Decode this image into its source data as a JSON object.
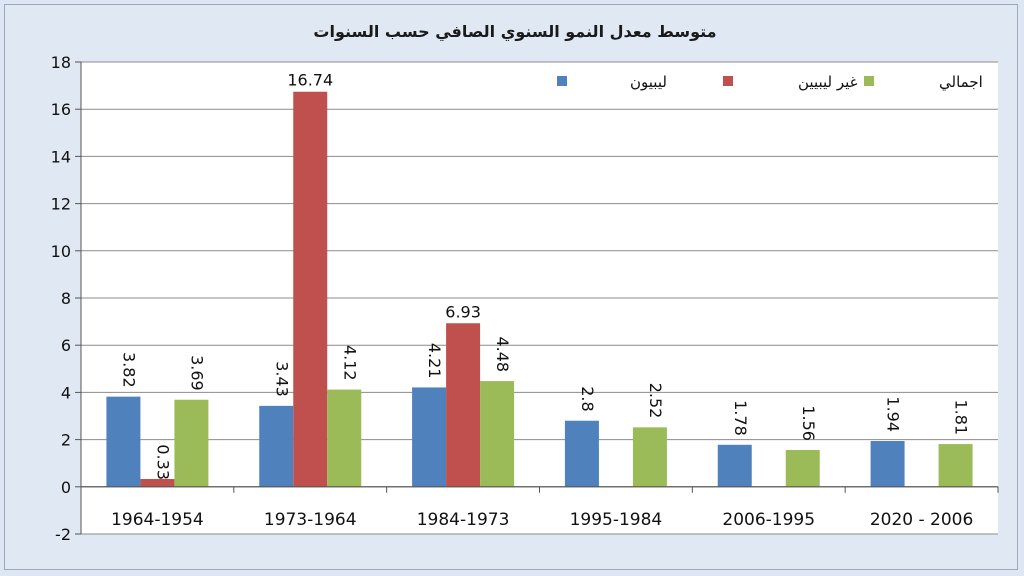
{
  "chart_data": {
    "type": "bar",
    "title": "متوسط معدل النمو السنوي الصافي حسب السنوات",
    "categories": [
      "1964-1954",
      "1973-1964",
      "1984-1973",
      "1995-1984",
      "2006-1995",
      "2020 - 2006"
    ],
    "series": [
      {
        "name": "ليبيون",
        "color": "#4f81bd",
        "values": [
          3.82,
          3.43,
          4.21,
          2.8,
          1.78,
          1.94
        ],
        "labels": [
          "3.82",
          "3.43",
          "4.21",
          "2.8",
          "1.78",
          "1.94"
        ]
      },
      {
        "name": "غير ليبيين",
        "color": "#c0504d",
        "values": [
          0.33,
          16.74,
          6.93,
          null,
          null,
          null
        ],
        "labels": [
          "0.33",
          "16.74",
          "6.93",
          null,
          null,
          null
        ]
      },
      {
        "name": "اجمالي",
        "color": "#9bbb59",
        "values": [
          3.69,
          4.12,
          4.48,
          2.52,
          1.56,
          1.81
        ],
        "labels": [
          "3.69",
          "4.12",
          "4.48",
          "2.52",
          "1.56",
          "1.81"
        ]
      }
    ],
    "ylim": [
      -2,
      18
    ],
    "yticks": [
      -2,
      0,
      2,
      4,
      6,
      8,
      10,
      12,
      14,
      16,
      18
    ],
    "grid": true,
    "legend_position": "top-right"
  }
}
